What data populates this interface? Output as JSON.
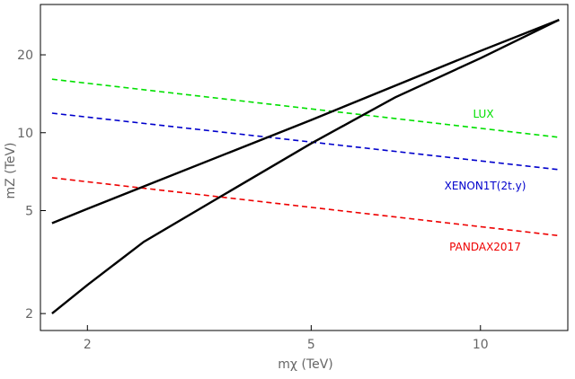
{
  "chart_data": {
    "type": "line",
    "xlabel": "mχ (TeV)",
    "ylabel": "mZ (TeV)",
    "xscale": "log",
    "yscale": "log",
    "xlim": [
      1.65,
      14.3
    ],
    "ylim": [
      1.72,
      31.3
    ],
    "xticks": [
      2,
      5,
      10
    ],
    "yticks": [
      2,
      5,
      10,
      20
    ],
    "series": [
      {
        "name": "LUX",
        "color": "#00e000",
        "dash": true,
        "x": [
          1.73,
          13.8
        ],
        "values": [
          16.1,
          9.6
        ]
      },
      {
        "name": "XENON1T(2t.y)",
        "color": "#0000cc",
        "dash": true,
        "x": [
          1.73,
          13.8
        ],
        "values": [
          11.9,
          7.2
        ]
      },
      {
        "name": "PANDAX2017",
        "color": "#ee0000",
        "dash": true,
        "x": [
          1.73,
          13.8
        ],
        "values": [
          6.7,
          4.0
        ]
      },
      {
        "color": "#000000",
        "dash": false,
        "x": [
          1.73,
          2,
          5,
          10,
          13.8
        ],
        "values": [
          4.47,
          5.08,
          11.2,
          20.7,
          27.3
        ]
      },
      {
        "color": "#000000",
        "dash": false,
        "x": [
          1.73,
          2,
          2.52,
          3.44,
          5,
          7.05,
          10,
          13.8
        ],
        "values": [
          2.0,
          2.58,
          3.79,
          5.64,
          9.09,
          13.7,
          19.4,
          27.3
        ]
      }
    ]
  }
}
